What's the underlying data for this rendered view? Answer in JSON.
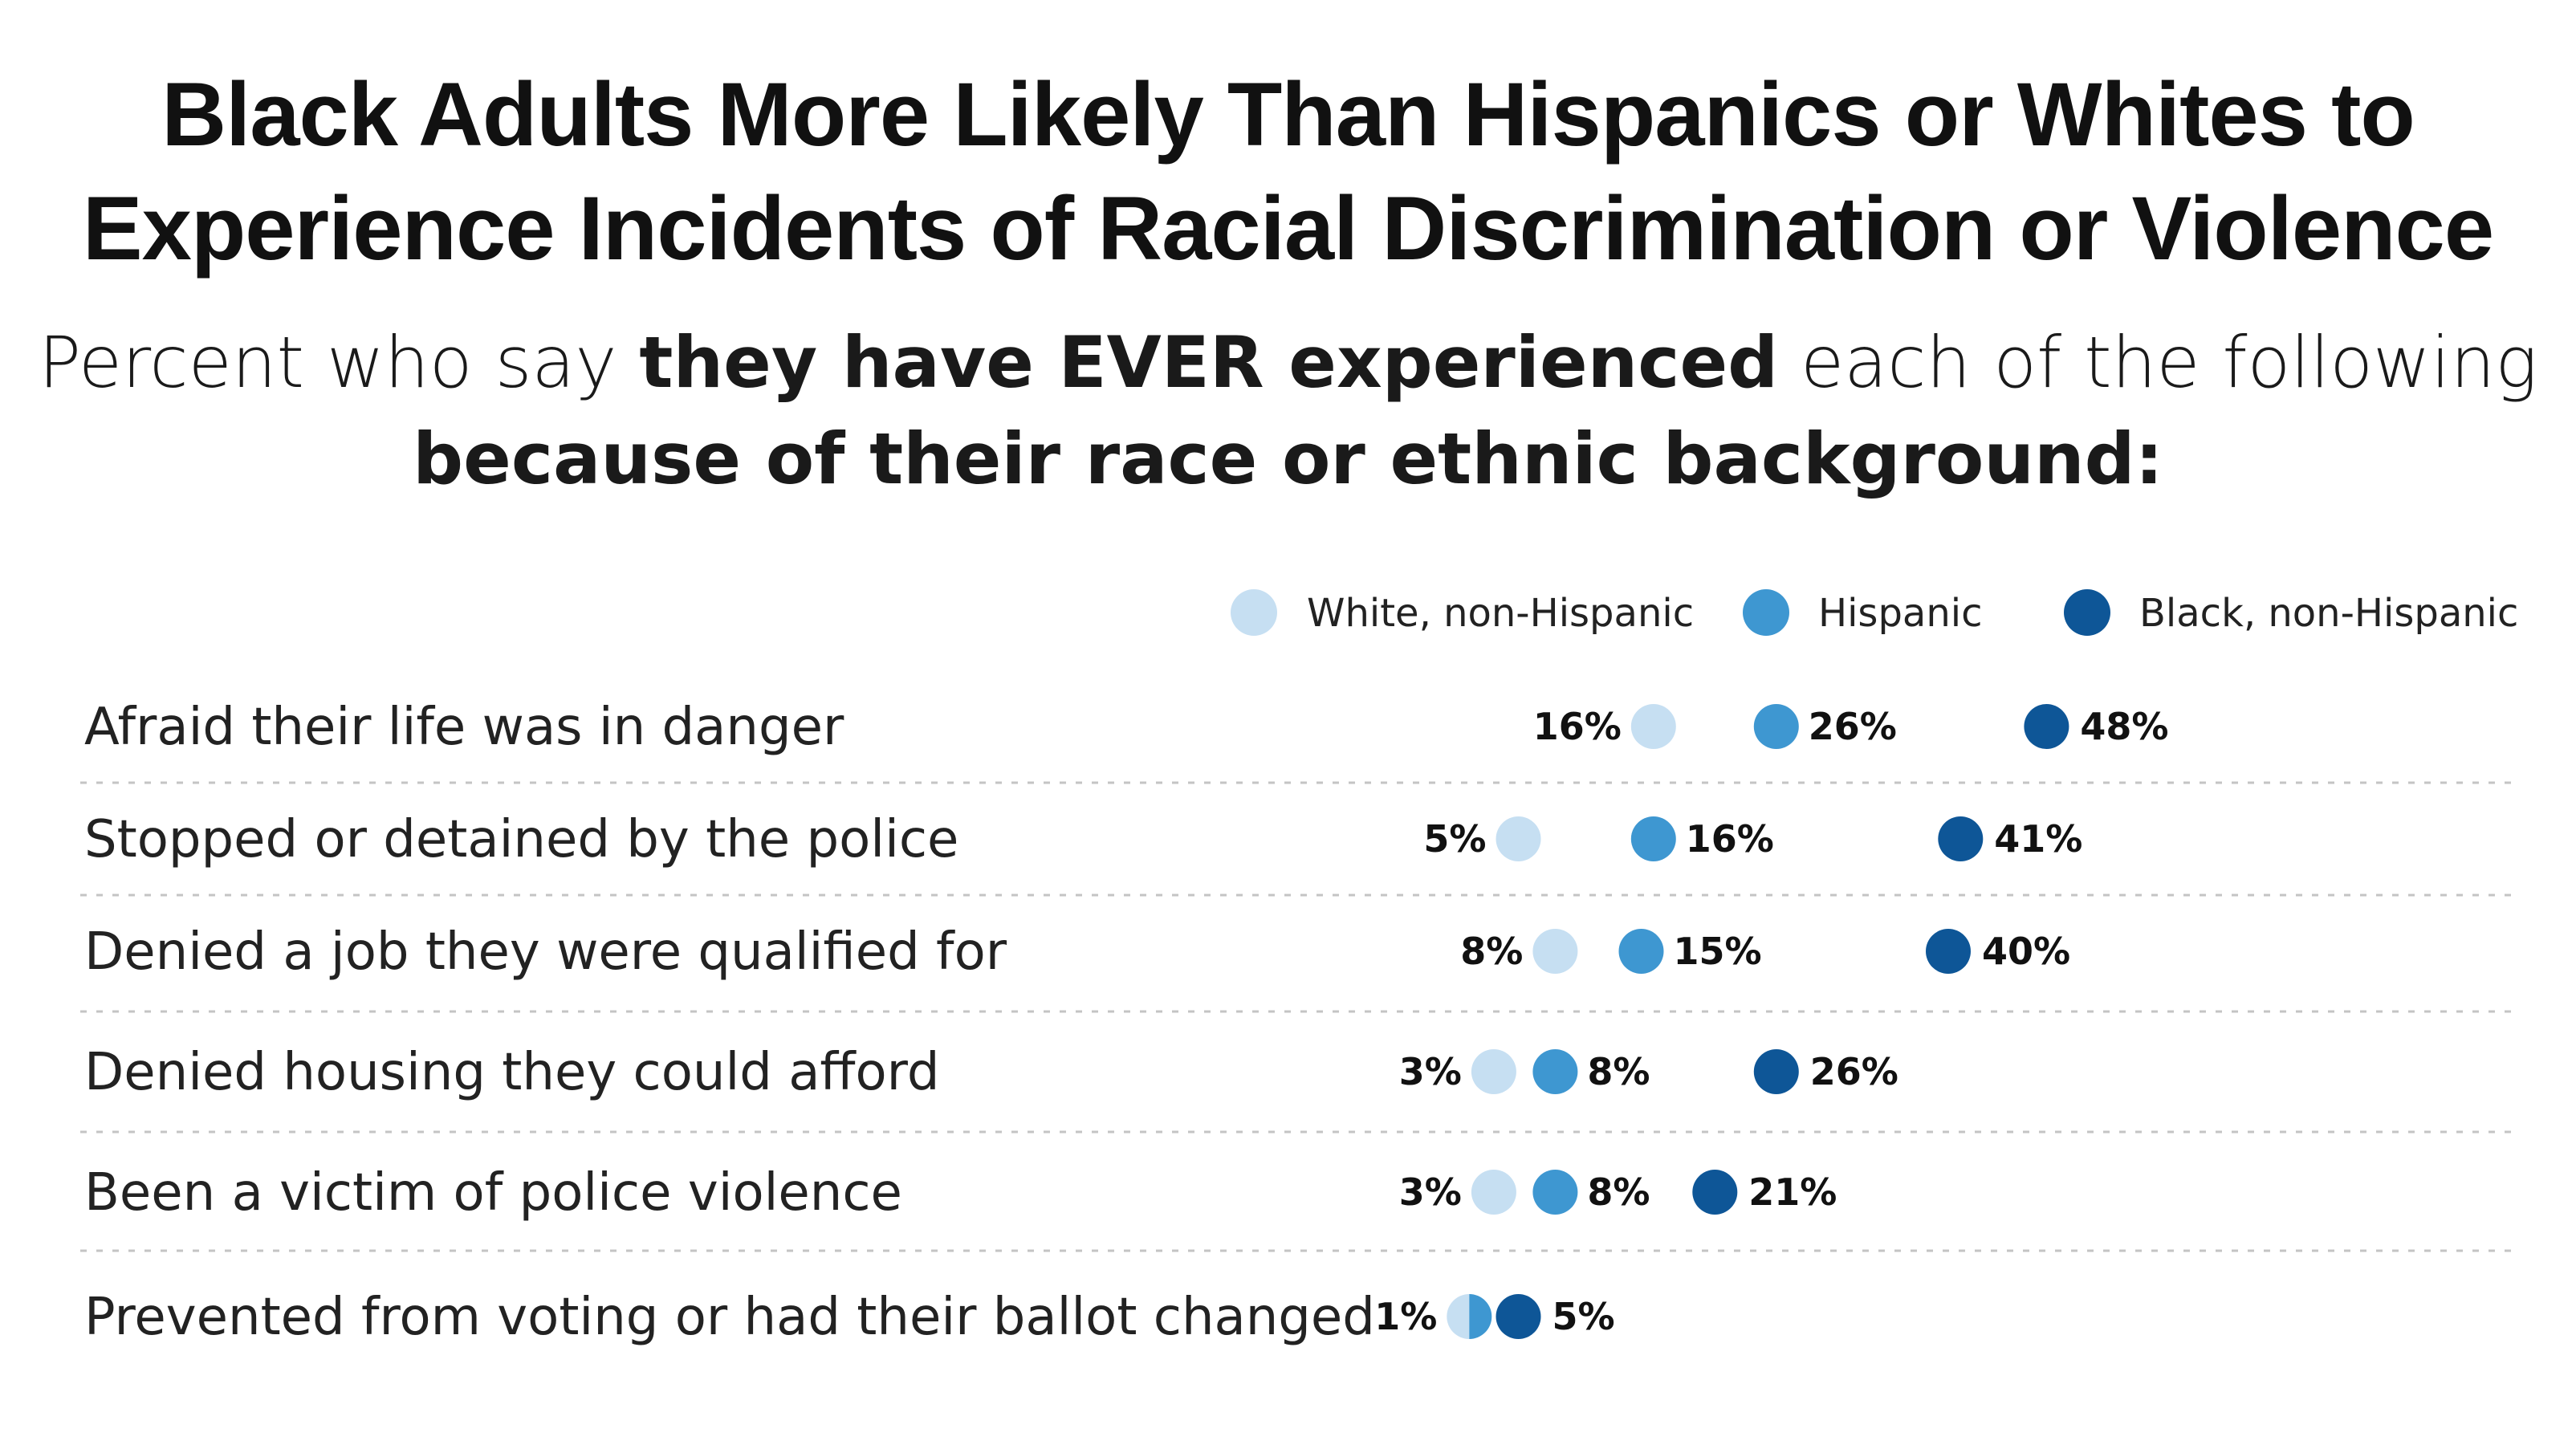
{
  "chart_data": {
    "type": "dot-plot",
    "title": [
      "Black Adults More Likely Than Hispanics or Whites to",
      "Experience Incidents of Racial Discrimination or Violence"
    ],
    "subtitle": {
      "line1_part1": "Percent who say ",
      "line1_bold": "they have EVER experienced",
      "line1_part2": " each of the following",
      "line2_bold": "because of their race or ethnic background:"
    },
    "legend_position": "top-right",
    "categories": [
      "Afraid their life was in danger",
      "Stopped or detained by the police",
      "Denied a job they were qualified for",
      "Denied housing they could afford",
      "Been a victim of police violence",
      "Prevented from voting or had their ballot changed"
    ],
    "series": [
      {
        "name": "White, non-Hispanic",
        "color": "#c6dff2",
        "values": [
          16,
          5,
          8,
          3,
          3,
          1
        ]
      },
      {
        "name": "Hispanic",
        "color": "#3e97d1",
        "values": [
          26,
          16,
          15,
          8,
          8,
          1
        ]
      },
      {
        "name": "Black, non-Hispanic",
        "color": "#0e5697",
        "values": [
          48,
          41,
          40,
          26,
          21,
          5
        ]
      }
    ],
    "row_labels": [
      [
        "16%",
        "26%",
        "48%"
      ],
      [
        "5%",
        "16%",
        "41%"
      ],
      [
        "8%",
        "15%",
        "40%"
      ],
      [
        "3%",
        "8%",
        "26%"
      ],
      [
        "3%",
        "8%",
        "21%"
      ],
      [
        "1%",
        "",
        "5%"
      ]
    ]
  }
}
